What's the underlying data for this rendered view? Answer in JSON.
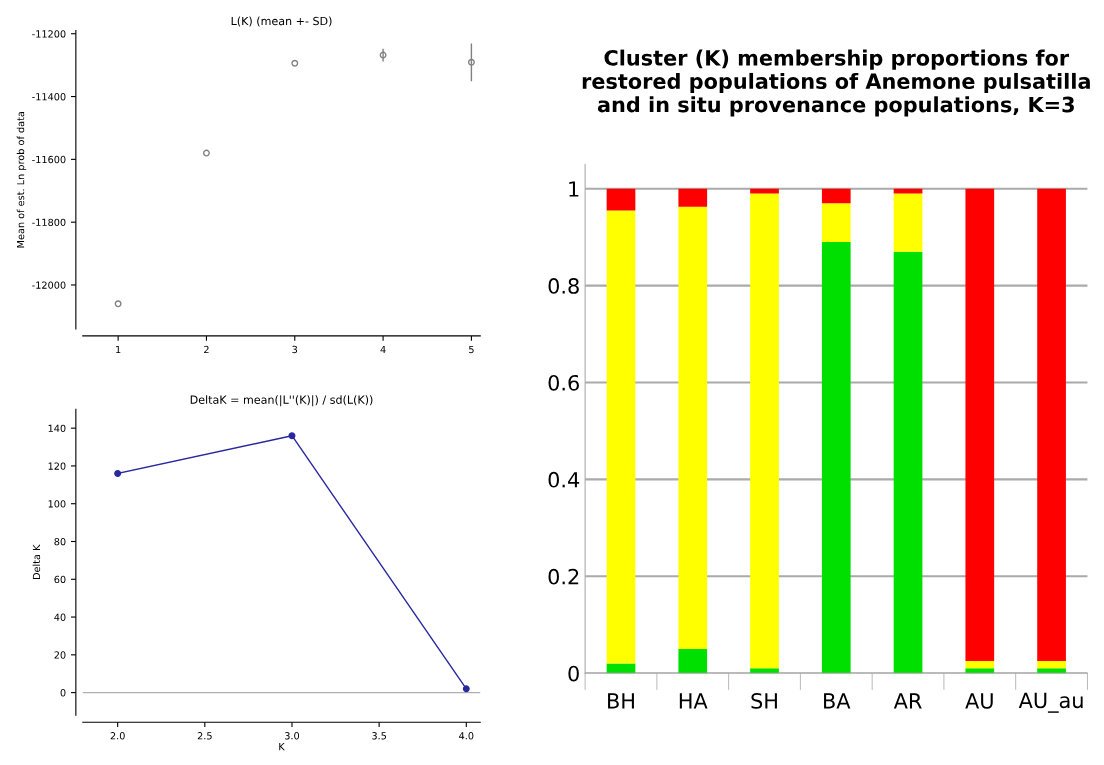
{
  "chart_data": [
    {
      "type": "scatter",
      "title": "L(K) (mean +- SD)",
      "ylabel": "Mean of est. Ln prob of data",
      "x": [
        1,
        2,
        3,
        4,
        5
      ],
      "xlim": [
        0.6,
        5.1
      ],
      "xticks": [
        1,
        2,
        3,
        4,
        5
      ],
      "ylim": [
        -12140,
        -11190
      ],
      "yticks": [
        -12000,
        -11800,
        -11600,
        -11400,
        -11200
      ],
      "marker": "circle",
      "grid": false,
      "series": [
        {
          "color": "#808080",
          "values": [
            -12060,
            -11580,
            -11294,
            -11268,
            -11291
          ],
          "errors": [
            null,
            null,
            null,
            20,
            60
          ]
        }
      ]
    },
    {
      "type": "line",
      "title": "DeltaK = mean(|L''(K)|) / sd(L(K))",
      "xlabel": "K",
      "ylabel": "Delta K",
      "x": [
        2.0,
        3.0,
        4.0
      ],
      "xlim": [
        1.8,
        4.08
      ],
      "xticks": [
        {
          "value": 2,
          "label": "2.0"
        },
        {
          "value": 2.5,
          "label": "2.5"
        },
        {
          "value": 3,
          "label": "3.0"
        },
        {
          "value": 3.5,
          "label": "3.5"
        },
        {
          "value": 4,
          "label": "4.0"
        }
      ],
      "ylim": [
        -12,
        150
      ],
      "yticks": [
        0,
        20,
        40,
        60,
        80,
        100,
        120,
        140
      ],
      "marker": "circle",
      "line_style": "solid",
      "grid": false,
      "ref_lines": [
        {
          "axis": "y",
          "value": 0,
          "color": "#b0b0b0"
        }
      ],
      "series": [
        {
          "color": "#2828a0",
          "values": [
            116,
            136,
            2
          ]
        }
      ]
    },
    {
      "type": "bar",
      "stacked": true,
      "title": "Cluster (K) membership proportions for restored populations of Anemone pulsatilla and in situ provenance populations, K=3",
      "categories": [
        "BH",
        "HA",
        "SH",
        "BA",
        "AR",
        "AU",
        "AU_au"
      ],
      "ylim": [
        0,
        1.05
      ],
      "yticks": [
        0,
        0.2,
        0.4,
        0.6,
        0.8,
        1
      ],
      "grid": "y",
      "series": [
        {
          "color": "#00e000",
          "values": [
            0.02,
            0.05,
            0.01,
            0.89,
            0.87,
            0.01,
            0.01
          ]
        },
        {
          "color": "#ffff00",
          "values": [
            0.935,
            0.913,
            0.98,
            0.08,
            0.12,
            0.015,
            0.015
          ]
        },
        {
          "color": "#ff0000",
          "values": [
            0.045,
            0.037,
            0.01,
            0.03,
            0.01,
            0.975,
            0.975
          ]
        }
      ]
    }
  ]
}
